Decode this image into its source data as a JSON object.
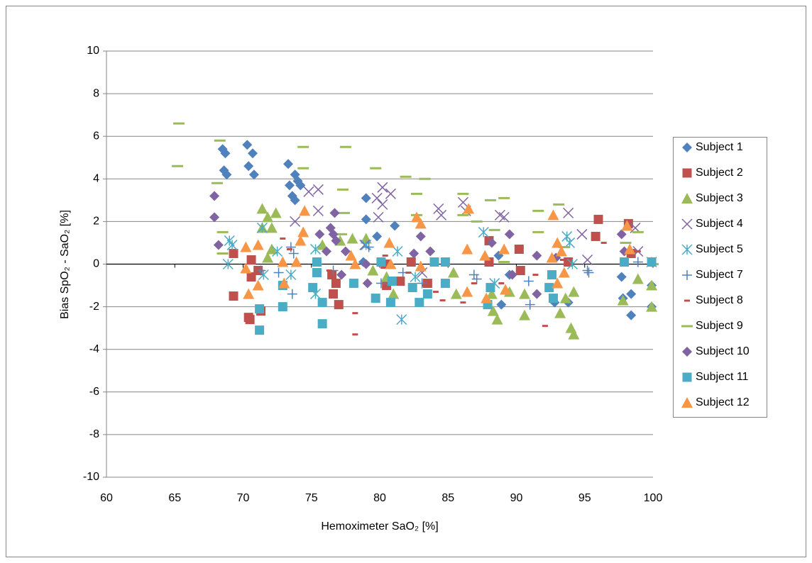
{
  "chart_data": {
    "type": "scatter",
    "x_label": "Hemoximeter SaO₂ [%]",
    "y_label": "Bias SpO₂ - SaO₂ [%]",
    "xlim": [
      60,
      100
    ],
    "xticks": [
      60,
      65,
      70,
      75,
      80,
      85,
      90,
      95,
      100
    ],
    "ylim": [
      -10,
      10
    ],
    "yticks": [
      -10,
      -8,
      -6,
      -4,
      -2,
      0,
      2,
      4,
      6,
      8,
      10
    ],
    "grid": true,
    "legend": "right",
    "series": [
      {
        "name": "Subject 1",
        "color": "#4F81BD",
        "marker": "diamond",
        "x": [
          68.5,
          68.7,
          68.6,
          68.8,
          70.3,
          70.4,
          70.7,
          70.8,
          73.3,
          73.8,
          74,
          74.2,
          73.4,
          73.6,
          73.8,
          79,
          79,
          79.8,
          81.1,
          88.7,
          88.9,
          89.5,
          92.8,
          93.8,
          97.7,
          97.8,
          98.4,
          98.4,
          99.9,
          99.9,
          78.8
        ],
        "values": [
          5.4,
          5.2,
          4.4,
          4.2,
          5.6,
          4.6,
          5.2,
          4.2,
          4.7,
          4.2,
          3.9,
          3.7,
          3.7,
          3.2,
          3.0,
          3.1,
          2.1,
          1.3,
          1.8,
          0.4,
          -1.9,
          -0.5,
          -1.8,
          -1.8,
          -0.6,
          -1.6,
          -1.4,
          -2.4,
          -1.0,
          -2.0,
          0.1
        ]
      },
      {
        "name": "Subject 2",
        "color": "#C0504D",
        "marker": "square",
        "x": [
          69.3,
          69.3,
          70.4,
          70.5,
          70.6,
          70.6,
          71.3,
          71.1,
          76.5,
          76.6,
          77,
          76.8,
          80.5,
          81.5,
          82.3,
          83.5,
          88,
          88,
          90.2,
          90.3,
          93.8,
          95.8,
          96,
          98.2,
          98.4,
          80.4
        ],
        "values": [
          0.5,
          -1.5,
          -2.5,
          -2.6,
          -0.6,
          0.2,
          -2.2,
          -0.3,
          -0.5,
          -1.4,
          -1.9,
          -0.9,
          -1.0,
          -0.8,
          0.1,
          -0.9,
          1.1,
          0.1,
          0.7,
          -0.3,
          0.1,
          1.3,
          2.1,
          1.9,
          0.5,
          0.0
        ]
      },
      {
        "name": "Subject 3",
        "color": "#9BBB59",
        "marker": "triangle",
        "x": [
          71.4,
          71.8,
          71.4,
          72.4,
          72.1,
          72.1,
          71.8,
          77.1,
          78,
          79,
          79.5,
          80.5,
          81,
          85.4,
          85.6,
          88.2,
          88.3,
          88.6,
          89.5,
          90.6,
          90.6,
          93.2,
          94,
          94.2,
          94.2,
          93.6,
          97.8,
          98.9,
          99.9,
          99.9,
          75.8
        ],
        "values": [
          2.6,
          2.2,
          1.7,
          2.4,
          1.7,
          0.7,
          0.3,
          1.1,
          1.2,
          1.2,
          -0.3,
          -0.6,
          -1.4,
          -0.4,
          -1.4,
          -1.4,
          -2.2,
          -2.6,
          -1.3,
          -2.4,
          -1.4,
          -2.3,
          -3.0,
          -3.3,
          -1.3,
          -1.6,
          -1.7,
          -0.7,
          -1.0,
          -2.0,
          0.9
        ]
      },
      {
        "name": "Subject 4",
        "color": "#8064A2",
        "marker": "x",
        "x": [
          73.8,
          74.8,
          75.5,
          75.5,
          78.9,
          79.8,
          80.2,
          80.2,
          80.8,
          79.9,
          84.3,
          84.5,
          86.1,
          86.3,
          88.8,
          89.1,
          93.8,
          94.8,
          95.2,
          98.7,
          98.9,
          83.1
        ],
        "values": [
          2.0,
          3.4,
          3.5,
          2.5,
          0.9,
          3.1,
          3.6,
          2.8,
          3.3,
          2.2,
          2.6,
          2.3,
          2.9,
          2.5,
          2.3,
          2.2,
          2.4,
          1.4,
          0.2,
          1.7,
          0.6,
          -0.4
        ]
      },
      {
        "name": "Subject 5",
        "color": "#4BACC6",
        "marker": "star",
        "x": [
          68.9,
          69.2,
          69,
          71.4,
          71.5,
          72.5,
          73.5,
          75.3,
          75.3,
          79,
          81.3,
          81.6,
          82.6,
          87.6,
          88.4,
          93.7,
          93.9,
          94.1,
          99.9
        ],
        "values": [
          0,
          0.9,
          1.1,
          1.7,
          -0.5,
          0.6,
          -0.5,
          0.7,
          -1.4,
          0.9,
          0.6,
          -2.6,
          -0.6,
          1.5,
          -0.9,
          1.3,
          1.0,
          0,
          0.1
        ]
      },
      {
        "name": "Subject 7",
        "color": "#4F81BD",
        "marker": "plus",
        "x": [
          71.3,
          72.6,
          73.5,
          73.6,
          73.7,
          76.6,
          79.2,
          80.1,
          81.7,
          83.1,
          86.9,
          87.1,
          90.9,
          91,
          95.2,
          95.3,
          98.9
        ],
        "values": [
          -0.3,
          -0.4,
          0.8,
          -1.4,
          0.5,
          -0.3,
          0.8,
          -0.9,
          -0.4,
          -0.9,
          -0.5,
          -0.7,
          -0.8,
          -1.9,
          -0.3,
          -0.4,
          0.1
        ]
      },
      {
        "name": "Subject 8",
        "color": "#C0504D",
        "marker": "dash",
        "x": [
          72.9,
          73.4,
          76.3,
          78.2,
          78.2,
          80.4,
          82.1,
          83.3,
          84.1,
          84.6,
          86.1,
          86.9,
          88.9,
          91.4,
          92.1,
          93.4,
          96.4,
          98.9
        ],
        "values": [
          1.2,
          0.7,
          -0.3,
          -2.3,
          -3.3,
          0.4,
          -0.4,
          -1.0,
          -1.3,
          -1.7,
          -1.8,
          -0.9,
          -0.9,
          -0.5,
          -2.9,
          0.2,
          1.0,
          0.6
        ]
      },
      {
        "name": "Subject 9",
        "color": "#9BBB59",
        "marker": "long-dash",
        "x": [
          65.3,
          65.2,
          68.3,
          68.1,
          68.5,
          68.5,
          74.4,
          74.4,
          77.5,
          77.3,
          77.4,
          77.2,
          79.7,
          81.9,
          82.7,
          82.7,
          83.3,
          86.1,
          86.1,
          87.1,
          88.1,
          88.4,
          89.1,
          89.1,
          91.6,
          91.6,
          93.1,
          93.5,
          98,
          98.9,
          100
        ],
        "values": [
          6.6,
          4.6,
          5.8,
          3.8,
          1.5,
          0.5,
          5.5,
          4.5,
          5.5,
          3.5,
          2.4,
          1.4,
          4.5,
          4.1,
          3.3,
          2.3,
          4.0,
          3.3,
          2.3,
          2.0,
          3.0,
          1.6,
          3.1,
          0.1,
          2.5,
          1.5,
          2.8,
          0.8,
          1.0,
          1.5,
          0.0
        ]
      },
      {
        "name": "Subject 10",
        "color": "#8064A2",
        "marker": "diamond",
        "x": [
          67.9,
          67.9,
          68.2,
          75.6,
          76.4,
          76.6,
          76.7,
          76.8,
          77.5,
          77.2,
          79.1,
          79,
          82.5,
          83.7,
          83,
          88.2,
          89.5,
          89.7,
          91.5,
          91.5,
          92.9,
          97.7,
          97.9,
          76.1
        ],
        "values": [
          3.2,
          2.2,
          0.9,
          1.4,
          1.7,
          1.4,
          2.4,
          1.1,
          0.6,
          -0.5,
          -0.9,
          0,
          0.5,
          0.6,
          1.3,
          1.0,
          1.4,
          -0.5,
          0.4,
          -1.4,
          0.3,
          1.4,
          0.6,
          0.6
        ]
      },
      {
        "name": "Subject 11",
        "color": "#4BACC6",
        "marker": "square",
        "x": [
          71.2,
          71.2,
          72.9,
          72.9,
          75.1,
          75.4,
          75.4,
          75.8,
          75.8,
          78.1,
          79.7,
          80.1,
          80.8,
          80.9,
          82.4,
          82.9,
          83.5,
          84,
          84.8,
          84.8,
          87.9,
          88.1,
          92.4,
          92.6,
          92.7,
          97.9,
          99.9
        ],
        "values": [
          -2.1,
          -3.1,
          -2.0,
          -1.0,
          -1.1,
          -0.4,
          0.1,
          -1.8,
          -2.8,
          -0.9,
          -1.6,
          0.1,
          -1.8,
          -0.8,
          -1.1,
          -1.8,
          -1.4,
          0.1,
          0.1,
          -0.9,
          -1.9,
          -1.1,
          -1.1,
          -0.5,
          -1.6,
          0.1,
          0.1
        ]
      },
      {
        "name": "Subject 12",
        "color": "#F79646",
        "marker": "triangle",
        "x": [
          70.2,
          70.2,
          70.4,
          71.1,
          71.1,
          72.9,
          73,
          73.9,
          74.2,
          74.4,
          74.5,
          77.9,
          78.2,
          80.7,
          80.8,
          82.7,
          83,
          83,
          86.4,
          86.5,
          86.4,
          87.7,
          87.8,
          89.1,
          89.2,
          92.6,
          92.7,
          93,
          93.3,
          93.5,
          98.1,
          98.3,
          93
        ],
        "values": [
          0.8,
          -0.2,
          -1.4,
          -1.0,
          0.9,
          0.1,
          -0.9,
          0.1,
          1.1,
          1.5,
          2.5,
          0.4,
          0.0,
          1.0,
          0.0,
          2.2,
          1.9,
          -0.1,
          0.7,
          2.6,
          -1.3,
          0.4,
          -1.6,
          0.7,
          -1.2,
          0.3,
          2.3,
          -0.9,
          0.6,
          -0.4,
          1.8,
          0.7,
          1.0
        ]
      }
    ]
  }
}
